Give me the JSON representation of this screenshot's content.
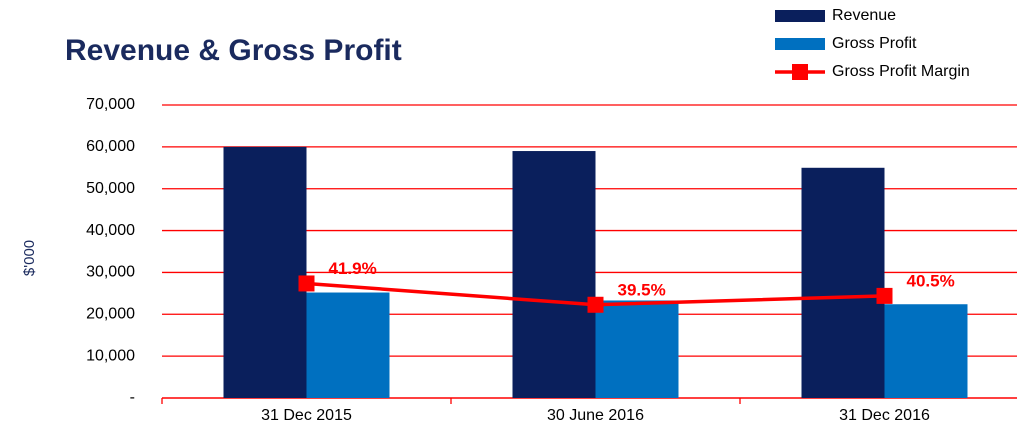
{
  "chart_data": {
    "type": "bar",
    "title": "Revenue & Gross Profit",
    "ylabel": "$'000",
    "categories": [
      "31 Dec 2015",
      "30 June 2016",
      "31 Dec 2016"
    ],
    "series": [
      {
        "name": "Revenue",
        "type": "bar",
        "color": "#0a1f5c",
        "values": [
          60000,
          59000,
          55000
        ]
      },
      {
        "name": "Gross Profit",
        "type": "bar",
        "color": "#0070c0",
        "values": [
          25200,
          23300,
          22400
        ]
      },
      {
        "name": "Gross Profit Margin",
        "type": "line",
        "axis": "y2",
        "color": "#ff0000",
        "values": [
          41.9,
          39.5,
          40.5
        ],
        "value_labels": [
          "41.9%",
          "39.5%",
          "40.5%"
        ]
      }
    ],
    "ylim": [
      0,
      70000
    ],
    "yticks": [
      {
        "value": 0,
        "label": "-"
      },
      {
        "value": 10000,
        "label": "10,000"
      },
      {
        "value": 20000,
        "label": "20,000"
      },
      {
        "value": 30000,
        "label": "30,000"
      },
      {
        "value": 40000,
        "label": "40,000"
      },
      {
        "value": 50000,
        "label": "50,000"
      },
      {
        "value": 60000,
        "label": "60,000"
      },
      {
        "value": 70000,
        "label": "70,000"
      }
    ],
    "y2lim": [
      29,
      62
    ],
    "grid": true,
    "grid_color": "#ff0000",
    "legend": "top-right"
  }
}
